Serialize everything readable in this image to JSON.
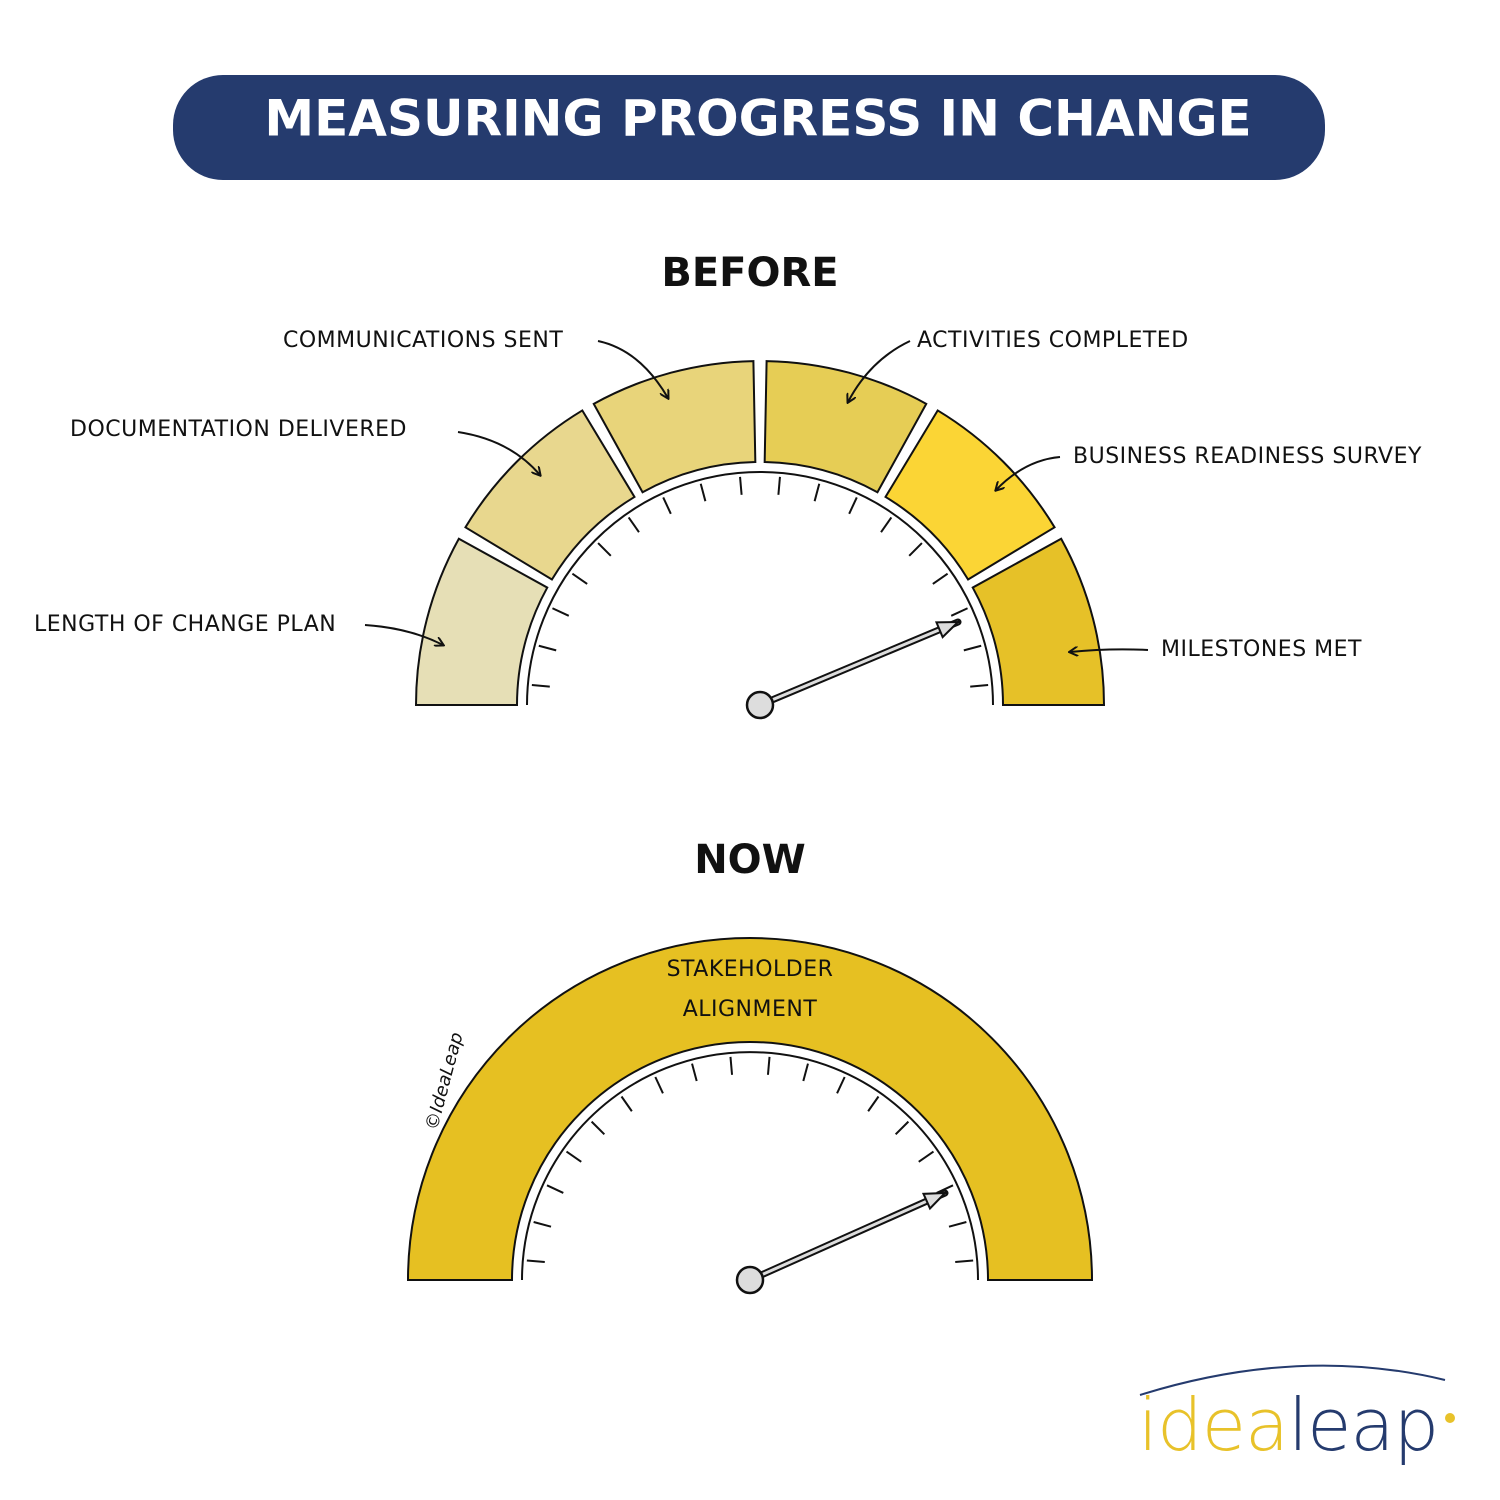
{
  "header": {
    "title": "MEASURING PROGRESS IN CHANGE"
  },
  "before": {
    "label": "BEFORE",
    "segments": [
      "LENGTH OF CHANGE PLAN",
      "DOCUMENTATION DELIVERED",
      "COMMUNICATIONS SENT",
      "ACTIVITIES COMPLETED",
      "BUSINESS READINESS SURVEY",
      "MILESTONES MET"
    ]
  },
  "now": {
    "label": "NOW",
    "segment": [
      "STAKEHOLDER",
      "ALIGNMENT"
    ]
  },
  "copyright": "©IdeaLeap",
  "logo": {
    "part1": "idea",
    "part2": "leap"
  }
}
